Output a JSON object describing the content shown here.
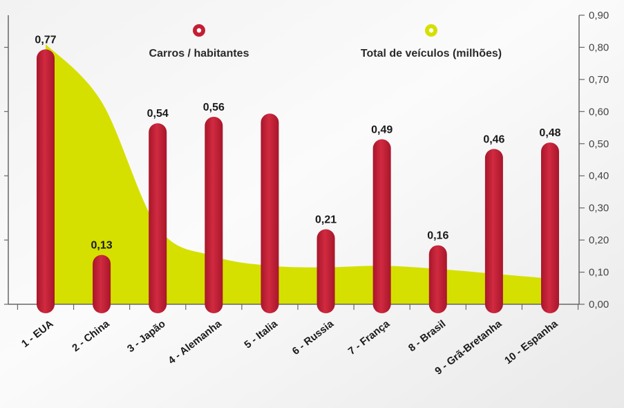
{
  "chart_data": {
    "type": "bar",
    "categories": [
      "1 - EUA",
      "2 - China",
      "3 - Japão",
      "4 - Alemanha",
      "5 - Italia",
      "6 - Russia",
      "7 - França",
      "8 - Brasil",
      "9 - Grã-Bretanha",
      "10 - Espanha"
    ],
    "series": [
      {
        "name": "Carros / habitantes",
        "type": "bar",
        "color": "#c41e34",
        "values": [
          0.77,
          0.13,
          0.54,
          0.56,
          0.57,
          0.21,
          0.49,
          0.16,
          0.46,
          0.48
        ],
        "value_labels": [
          "0,77",
          "0,13",
          "0,54",
          "0,56",
          "",
          "0,21",
          "0,49",
          "0,16",
          "0,46",
          "0,48"
        ]
      },
      {
        "name": "Total de veículos (milhões)",
        "type": "area",
        "color": "#d5e000",
        "values": [
          0.81,
          0.63,
          0.24,
          0.15,
          0.12,
          0.115,
          0.12,
          0.11,
          0.095,
          0.08
        ]
      }
    ],
    "y_right": {
      "min": 0,
      "max": 0.9,
      "ticks": [
        0,
        0.1,
        0.2,
        0.3,
        0.4,
        0.5,
        0.6,
        0.7,
        0.8,
        0.9
      ],
      "tick_labels": [
        "0,00",
        "0,10",
        "0,20",
        "0,30",
        "0,40",
        "0,50",
        "0,60",
        "0,70",
        "0,80",
        "0,90"
      ]
    },
    "y_left": {
      "ticks": [
        0,
        0.2,
        0.4,
        0.6,
        0.8
      ]
    },
    "title": "",
    "xlabel": "",
    "ylabel": "",
    "legend_position": "top"
  }
}
